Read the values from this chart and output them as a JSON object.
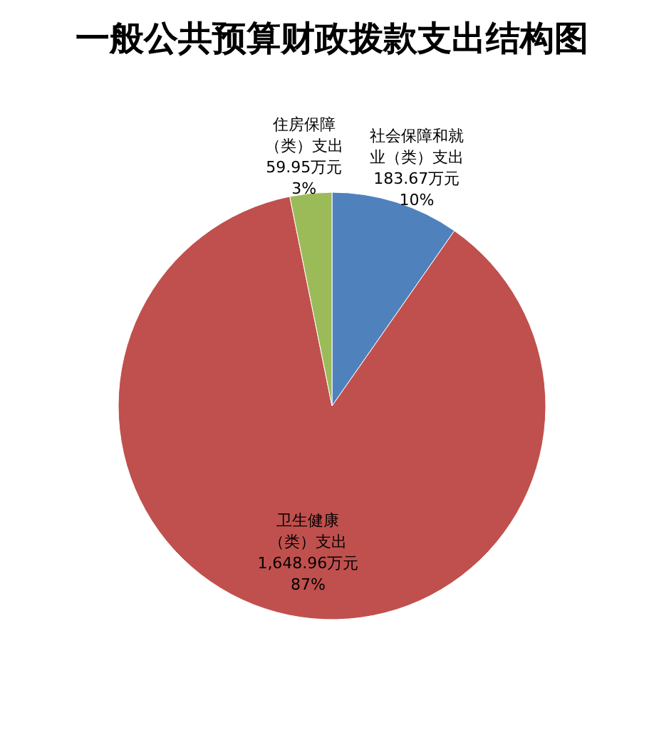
{
  "chart_data": {
    "type": "pie",
    "title": "一般公共预算财政拨款支出结构图",
    "categories": [
      "社会保障和就业（类）支出",
      "卫生健康（类）支出",
      "住房保障（类）支出"
    ],
    "values": [
      183.67,
      1648.96,
      59.95
    ],
    "colors": [
      "#4f81bd",
      "#c0504d",
      "#9bbb59"
    ],
    "value_labels": [
      "183.67万元\n10%",
      "1,648.96万元\n87%",
      "59.95万元\n3%"
    ]
  }
}
